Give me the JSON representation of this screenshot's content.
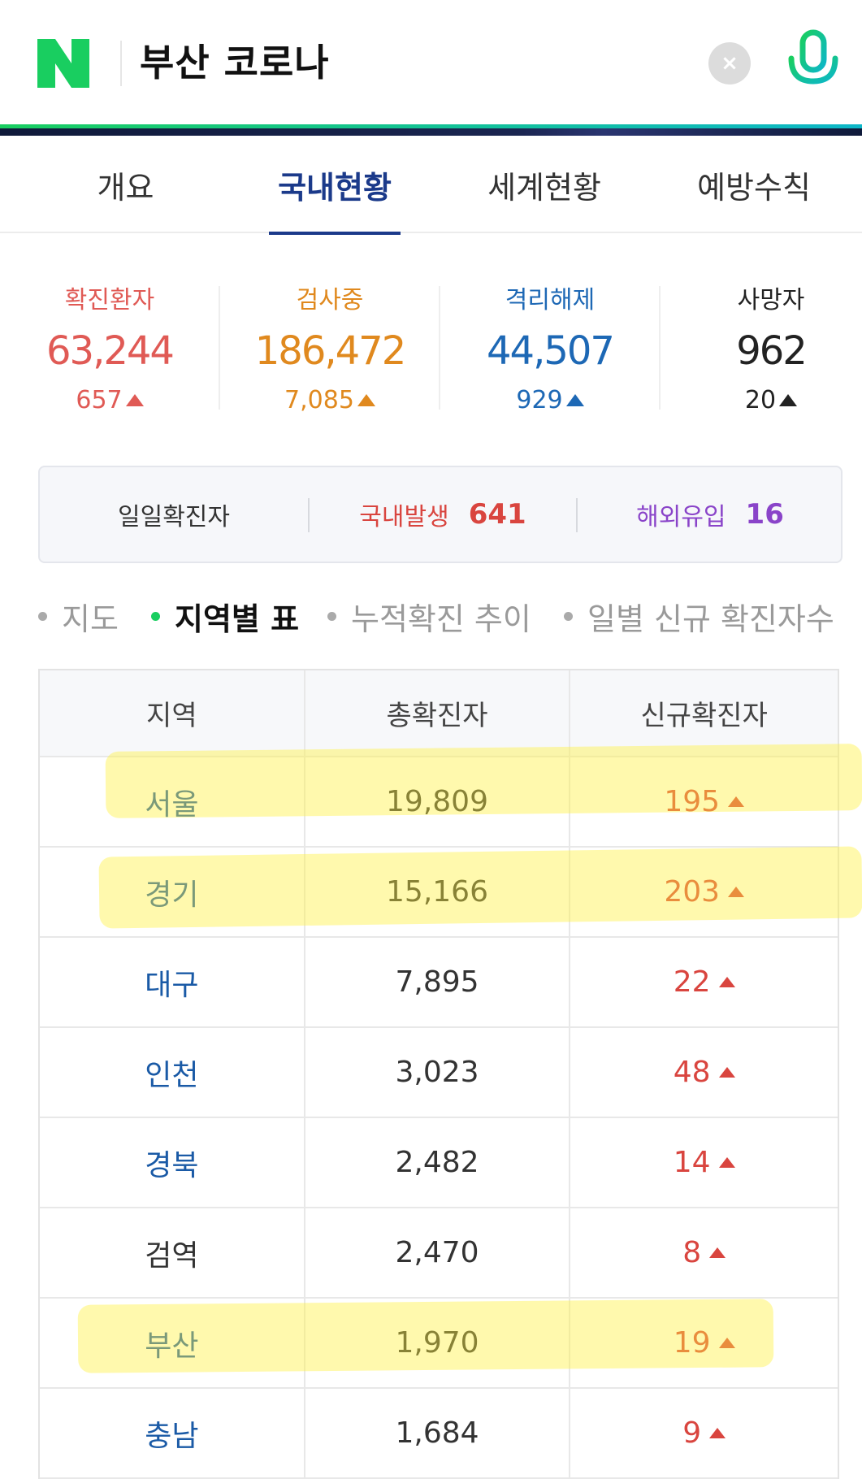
{
  "search": {
    "query": "부산 코로나",
    "logo_letter": "N",
    "brand_color": "#19ce60",
    "clear_icon": "×"
  },
  "tabs": [
    {
      "label": "개요",
      "active": false
    },
    {
      "label": "국내현황",
      "active": true
    },
    {
      "label": "세계현황",
      "active": false
    },
    {
      "label": "예방수칙",
      "active": false
    }
  ],
  "stats": {
    "confirmed": {
      "label": "확진환자",
      "value": "63,244",
      "delta": "657",
      "color": "#e05a55"
    },
    "testing": {
      "label": "검사중",
      "value": "186,472",
      "delta": "7,085",
      "color": "#e0891e"
    },
    "released": {
      "label": "격리해제",
      "value": "44,507",
      "delta": "929",
      "color": "#1d68b5"
    },
    "deaths": {
      "label": "사망자",
      "value": "962",
      "delta": "20",
      "color": "#222222"
    }
  },
  "daily": {
    "label": "일일확진자",
    "domestic_label": "국내발생",
    "domestic_value": "641",
    "overseas_label": "해외유입",
    "overseas_value": "16"
  },
  "subtabs": [
    {
      "label": "지도",
      "active": false
    },
    {
      "label": "지역별 표",
      "active": true
    },
    {
      "label": "누적확진 추이",
      "active": false
    },
    {
      "label": "일별 신규 확진자수",
      "active": false
    }
  ],
  "table": {
    "headers": [
      "지역",
      "총확진자",
      "신규확진자"
    ],
    "rows": [
      {
        "region": "서울",
        "total": "19,809",
        "new": "195"
      },
      {
        "region": "경기",
        "total": "15,166",
        "new": "203"
      },
      {
        "region": "대구",
        "total": "7,895",
        "new": "22"
      },
      {
        "region": "인천",
        "total": "3,023",
        "new": "48"
      },
      {
        "region": "경북",
        "total": "2,482",
        "new": "14"
      },
      {
        "region": "검역",
        "total": "2,470",
        "new": "8"
      },
      {
        "region": "부산",
        "total": "1,970",
        "new": "19"
      },
      {
        "region": "충남",
        "total": "1,684",
        "new": "9"
      }
    ]
  }
}
